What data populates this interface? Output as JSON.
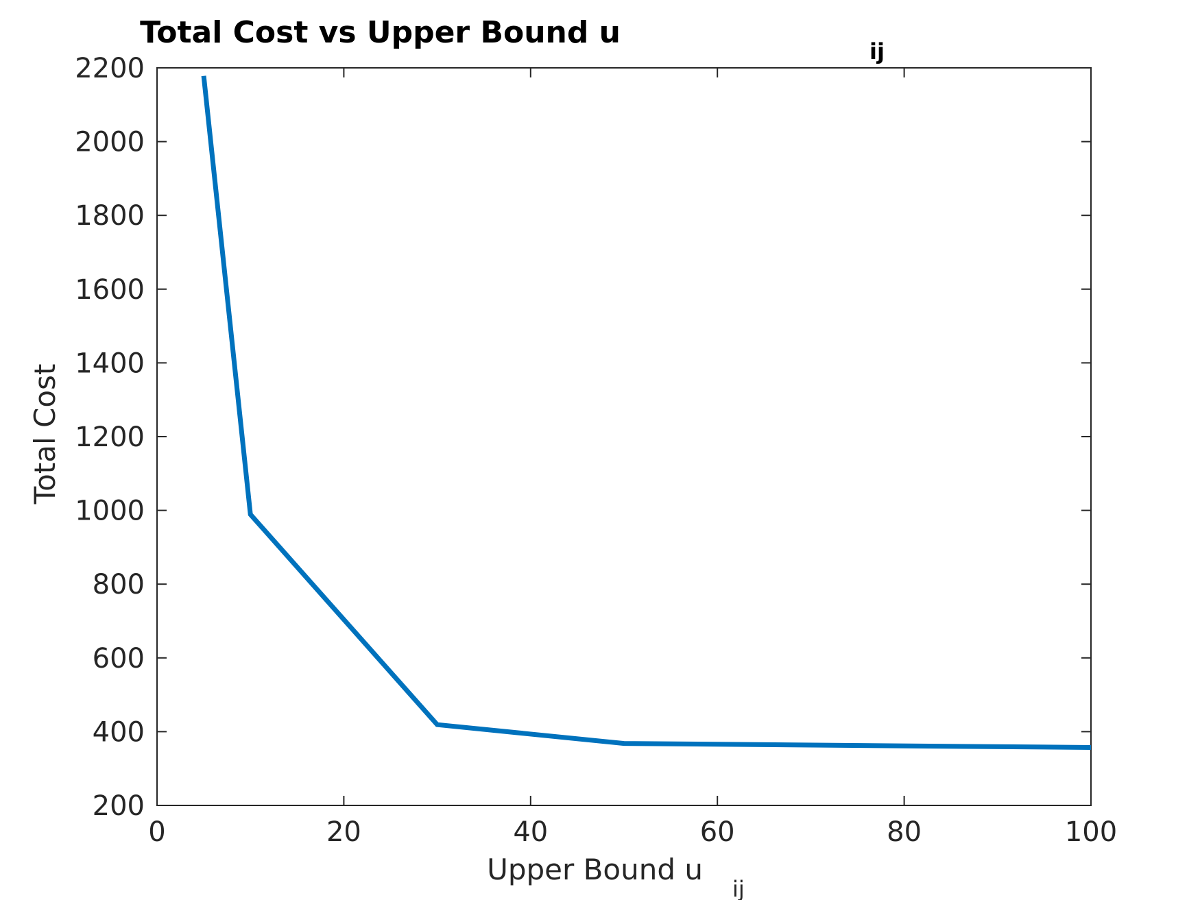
{
  "chart_data": {
    "type": "line",
    "title": "Total Cost vs Upper Bound u",
    "title_subscript": "ij",
    "xlabel": "Upper Bound u",
    "xlabel_subscript": "ij",
    "ylabel": "Total Cost",
    "xlim": [
      0,
      100
    ],
    "ylim": [
      200,
      2200
    ],
    "xticks": [
      0,
      20,
      40,
      60,
      80,
      100
    ],
    "yticks": [
      200,
      400,
      600,
      800,
      1000,
      1200,
      1400,
      1600,
      1800,
      2000,
      2200
    ],
    "grid": false,
    "legend": "none",
    "series": [
      {
        "color": "#0072BD",
        "x": [
          5,
          10,
          30,
          50,
          100
        ],
        "y": [
          2178,
          989,
          419,
          368,
          357
        ]
      }
    ]
  }
}
